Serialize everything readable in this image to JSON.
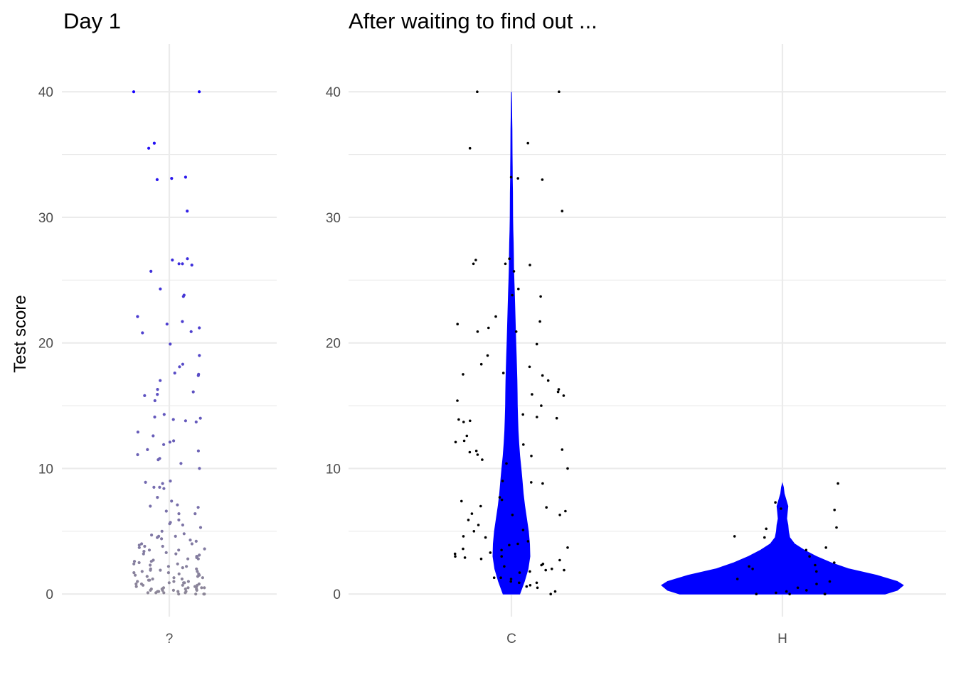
{
  "chart_data": [
    {
      "type": "scatter",
      "title": "Day 1",
      "ylabel": "Test score",
      "categories": [
        "?"
      ],
      "ylim": [
        -1.8,
        43.8
      ],
      "y_ticks": [
        0,
        10,
        20,
        30,
        40
      ],
      "grid": true,
      "color_scale": {
        "low": "#8d8798",
        "high": "#1500ff",
        "domain": [
          0,
          40
        ]
      },
      "series": [
        {
          "category": "?",
          "values": [
            40,
            40,
            35.9,
            35.5,
            33.2,
            33.1,
            33.0,
            30.5,
            26.7,
            26.6,
            26.3,
            26.3,
            26.2,
            25.7,
            24.3,
            23.8,
            23.7,
            22.1,
            21.7,
            21.5,
            21.2,
            20.9,
            20.8,
            19.9,
            19.0,
            18.3,
            18.1,
            17.6,
            17.5,
            17.4,
            17.0,
            16.3,
            16.1,
            15.9,
            15.8,
            15.4,
            14.3,
            14.1,
            14.0,
            13.9,
            13.8,
            13.7,
            12.9,
            12.6,
            12.2,
            12.1,
            11.9,
            11.5,
            11.4,
            11.1,
            10.8,
            10.7,
            10.4,
            10.0,
            9.0,
            8.9,
            8.8,
            8.5,
            8.5,
            8.4,
            7.7,
            7.4,
            7.1,
            7.0,
            6.9,
            6.6,
            6.4,
            6.4,
            5.9,
            5.7,
            5.6,
            5.5,
            5.3,
            5.0,
            4.8,
            4.7,
            4.6,
            4.6,
            4.5,
            4.4,
            4.3,
            4.2,
            4.0,
            4.0,
            3.9,
            3.8,
            3.8,
            3.7,
            3.6,
            3.5,
            3.5,
            3.4,
            3.3,
            3.2,
            3.2,
            3.1,
            3.0,
            3.0,
            2.9,
            2.8,
            2.8,
            2.7,
            2.6,
            2.6,
            2.5,
            2.4,
            2.4,
            2.3,
            2.2,
            2.2,
            2.1,
            2.0,
            2.0,
            1.9,
            1.9,
            1.8,
            1.8,
            1.7,
            1.7,
            1.6,
            1.6,
            1.5,
            1.5,
            1.4,
            1.4,
            1.3,
            1.3,
            1.2,
            1.2,
            1.1,
            1.1,
            1.0,
            1.0,
            1.0,
            0.9,
            0.9,
            0.9,
            0.8,
            0.8,
            0.8,
            0.7,
            0.7,
            0.7,
            0.6,
            0.6,
            0.6,
            0.5,
            0.5,
            0.5,
            0.5,
            0.4,
            0.4,
            0.4,
            0.4,
            0.3,
            0.3,
            0.3,
            0.3,
            0.2,
            0.2,
            0.2,
            0.2,
            0.1,
            0.1,
            0.1,
            0.1,
            0.0,
            0.0,
            0.0,
            0.0
          ]
        }
      ]
    },
    {
      "type": "violin",
      "title": "After waiting to find out ...",
      "categories": [
        "C",
        "H"
      ],
      "ylim": [
        -1.8,
        43.8
      ],
      "y_ticks": [
        0,
        10,
        20,
        30,
        40
      ],
      "grid": true,
      "violin_color": "#0000ff",
      "point_color": "#000000",
      "violins": [
        {
          "category": "C",
          "density": [
            [
              0,
              0.45
            ],
            [
              1,
              0.7
            ],
            [
              2,
              0.9
            ],
            [
              3,
              1.0
            ],
            [
              4,
              0.98
            ],
            [
              5,
              0.92
            ],
            [
              6,
              0.82
            ],
            [
              7,
              0.72
            ],
            [
              8,
              0.64
            ],
            [
              9,
              0.58
            ],
            [
              10,
              0.52
            ],
            [
              11,
              0.45
            ],
            [
              12,
              0.4
            ],
            [
              13,
              0.36
            ],
            [
              14,
              0.34
            ],
            [
              15,
              0.32
            ],
            [
              16,
              0.31
            ],
            [
              17,
              0.3
            ],
            [
              18,
              0.28
            ],
            [
              19,
              0.26
            ],
            [
              20,
              0.24
            ],
            [
              21,
              0.22
            ],
            [
              22,
              0.2
            ],
            [
              23,
              0.18
            ],
            [
              24,
              0.16
            ],
            [
              25,
              0.14
            ],
            [
              26,
              0.12
            ],
            [
              27,
              0.11
            ],
            [
              28,
              0.1
            ],
            [
              29,
              0.08
            ],
            [
              30,
              0.07
            ],
            [
              31,
              0.065
            ],
            [
              32,
              0.06
            ],
            [
              33,
              0.05
            ],
            [
              34,
              0.045
            ],
            [
              35,
              0.04
            ],
            [
              36,
              0.035
            ],
            [
              37,
              0.03
            ],
            [
              38,
              0.02
            ],
            [
              39,
              0.01
            ],
            [
              40,
              0.0
            ]
          ]
        },
        {
          "category": "H",
          "density": [
            [
              0,
              0.85
            ],
            [
              0.3,
              0.95
            ],
            [
              0.7,
              1.0
            ],
            [
              1.0,
              0.95
            ],
            [
              1.5,
              0.78
            ],
            [
              2.0,
              0.55
            ],
            [
              2.5,
              0.4
            ],
            [
              3.0,
              0.28
            ],
            [
              3.5,
              0.18
            ],
            [
              4.0,
              0.1
            ],
            [
              4.5,
              0.06
            ],
            [
              5.0,
              0.05
            ],
            [
              5.5,
              0.045
            ],
            [
              6.0,
              0.035
            ],
            [
              6.5,
              0.04
            ],
            [
              7.0,
              0.045
            ],
            [
              7.5,
              0.03
            ],
            [
              8.0,
              0.015
            ],
            [
              8.5,
              0.008
            ],
            [
              8.8,
              0.0
            ]
          ]
        }
      ],
      "series": [
        {
          "category": "C",
          "values": [
            40,
            40,
            35.9,
            35.5,
            33.2,
            33.1,
            33.0,
            30.5,
            26.7,
            26.6,
            26.3,
            26.3,
            26.2,
            25.7,
            24.3,
            23.8,
            23.7,
            22.1,
            21.7,
            21.5,
            21.2,
            20.9,
            20.9,
            19.9,
            19.0,
            18.3,
            18.1,
            17.6,
            17.5,
            17.4,
            17.0,
            16.3,
            16.1,
            15.9,
            15.8,
            15.4,
            15.0,
            14.3,
            14.1,
            14.0,
            13.9,
            13.8,
            13.7,
            12.6,
            12.2,
            12.1,
            11.9,
            11.5,
            11.4,
            11.3,
            11.1,
            11.0,
            10.7,
            10.4,
            10.0,
            9.0,
            8.9,
            8.8,
            7.7,
            7.5,
            7.4,
            7.0,
            6.9,
            6.6,
            6.4,
            6.3,
            6.3,
            5.9,
            5.5,
            5.1,
            5.0,
            4.6,
            4.5,
            4.2,
            4.0,
            3.9,
            3.7,
            3.6,
            3.5,
            3.3,
            3.2,
            3.0,
            3.0,
            2.9,
            2.8,
            2.7,
            2.4,
            2.3,
            2.2,
            2.0,
            1.9,
            1.9,
            1.8,
            1.7,
            1.3,
            1.3,
            1.2,
            1.0,
            0.9,
            0.9,
            0.7,
            0.6,
            0.5,
            0.2,
            0.0
          ]
        },
        {
          "category": "H",
          "values": [
            8.8,
            7.3,
            6.8,
            6.7,
            5.3,
            5.2,
            4.6,
            4.5,
            3.7,
            3.5,
            3.0,
            2.5,
            2.3,
            2.2,
            2.0,
            1.8,
            1.2,
            1.0,
            0.8,
            0.5,
            0.3,
            0.2,
            0.1,
            0.0,
            0.0,
            0.0,
            0.0
          ]
        }
      ]
    }
  ]
}
